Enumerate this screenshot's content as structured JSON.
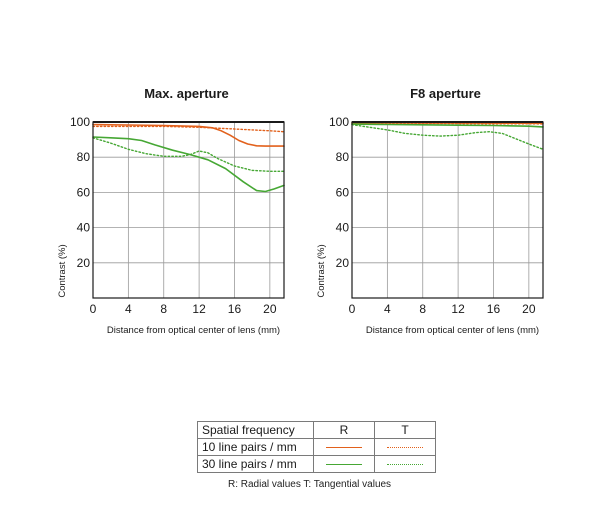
{
  "colors": {
    "orange": "#e2611c",
    "green": "#46a734",
    "grid": "#9a9a9a",
    "frame": "#1a1a1a"
  },
  "chart_data": [
    {
      "type": "line",
      "title": "Max. aperture",
      "xlabel": "Distance from optical center of lens (mm)",
      "ylabel": "Contrast (%)",
      "xlim": [
        0,
        21.6
      ],
      "ylim": [
        0,
        100
      ],
      "xticks": [
        "0",
        "4",
        "8",
        "12",
        "16",
        "20"
      ],
      "yticks": [
        "20",
        "40",
        "60",
        "80",
        "100"
      ],
      "grid": true,
      "series": [
        {
          "freq": "10",
          "type": "R",
          "x": [
            0,
            4,
            8,
            12,
            13.5,
            14.5,
            15.5,
            16.5,
            17.5,
            18.5,
            19.5,
            21.6
          ],
          "y": [
            98.5,
            98.3,
            98,
            97.5,
            96.7,
            95,
            92.5,
            89.5,
            87.5,
            86.5,
            86.3,
            86.3
          ]
        },
        {
          "freq": "10",
          "type": "T",
          "x": [
            0,
            4,
            8,
            12,
            16,
            18,
            20,
            21.6
          ],
          "y": [
            97.5,
            97.5,
            97.5,
            97,
            96,
            95.5,
            95,
            94.5
          ]
        },
        {
          "freq": "30",
          "type": "R",
          "x": [
            0,
            2,
            4,
            5.5,
            7,
            9,
            11,
            13,
            15,
            17,
            18.5,
            19.5,
            20.5,
            21.6
          ],
          "y": [
            91.5,
            91,
            90.5,
            89.5,
            87,
            84,
            81.5,
            78.5,
            73.5,
            66,
            61,
            60.5,
            62,
            64
          ]
        },
        {
          "freq": "30",
          "type": "T",
          "x": [
            0,
            2,
            4,
            6,
            8,
            10,
            11,
            12,
            13,
            14,
            16,
            18,
            20,
            21.6
          ],
          "y": [
            91,
            88,
            84.5,
            82,
            80.5,
            80.5,
            81.5,
            83.5,
            82.5,
            79.5,
            75,
            72.5,
            72,
            72
          ]
        }
      ]
    },
    {
      "type": "line",
      "title": "F8 aperture",
      "xlabel": "Distance from optical center of lens (mm)",
      "ylabel": "Contrast (%)",
      "xlim": [
        0,
        21.6
      ],
      "ylim": [
        0,
        100
      ],
      "xticks": [
        "0",
        "4",
        "8",
        "12",
        "16",
        "20"
      ],
      "yticks": [
        "20",
        "40",
        "60",
        "80",
        "100"
      ],
      "grid": true,
      "series": [
        {
          "freq": "10",
          "type": "R",
          "x": [
            0,
            4,
            8,
            12,
            16,
            20,
            21.6
          ],
          "y": [
            99.6,
            99.6,
            99.5,
            99.5,
            99.4,
            99.3,
            99.3
          ]
        },
        {
          "freq": "10",
          "type": "T",
          "x": [
            0,
            4,
            8,
            12,
            16,
            20,
            21.6
          ],
          "y": [
            99.3,
            99.2,
            99.2,
            99.1,
            99,
            99,
            98.9
          ]
        },
        {
          "freq": "30",
          "type": "R",
          "x": [
            0,
            4,
            8,
            12,
            16,
            20,
            21.6
          ],
          "y": [
            98.8,
            98.6,
            98.4,
            98.2,
            98,
            97.6,
            97.2
          ]
        },
        {
          "freq": "30",
          "type": "T",
          "x": [
            0,
            2,
            4,
            6,
            8,
            10,
            12,
            14,
            15.5,
            17,
            18.5,
            20,
            21.6
          ],
          "y": [
            98.5,
            97,
            95.5,
            93.5,
            92.5,
            92,
            92.5,
            94,
            94.5,
            93.5,
            90.5,
            87.5,
            84.5
          ]
        }
      ]
    }
  ],
  "legend": {
    "header": {
      "label": "Spatial frequency",
      "r": "R",
      "t": "T"
    },
    "rows": [
      {
        "label": "10 line pairs / mm",
        "freq": "10"
      },
      {
        "label": "30 line pairs / mm",
        "freq": "30"
      }
    ],
    "note": "R: Radial values  T: Tangential values"
  }
}
